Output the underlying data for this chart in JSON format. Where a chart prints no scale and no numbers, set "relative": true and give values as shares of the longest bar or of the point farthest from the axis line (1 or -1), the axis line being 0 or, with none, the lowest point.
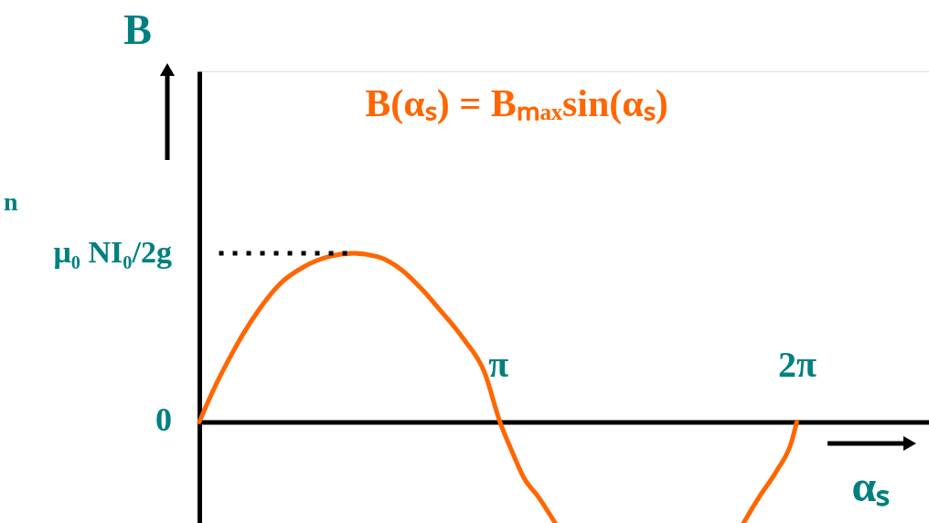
{
  "chart_data": {
    "type": "line",
    "relative": true,
    "title": "B(αₛ) = Bₘₐₓsin(αₛ)",
    "xlabel": "αₛ",
    "ylabel": "B",
    "x": [
      0,
      0.14,
      0.31,
      0.47,
      0.62,
      0.85,
      1.1,
      1.36,
      1.62,
      1.87,
      2.13,
      2.35,
      2.52,
      2.78,
      3.0,
      3.16,
      3.29,
      3.41,
      3.57,
      3.74,
      4.71,
      5.72,
      5.88,
      6.07,
      6.23,
      6.28
    ],
    "series": [
      {
        "color": "#ff6600",
        "values": [
          0,
          0.18,
          0.37,
          0.53,
          0.66,
          0.82,
          0.92,
          0.98,
          1,
          0.98,
          0.9,
          0.78,
          0.67,
          0.49,
          0.29,
          0,
          -0.18,
          -0.33,
          -0.45,
          -0.6,
          null,
          -0.6,
          -0.45,
          -0.29,
          -0.11,
          0
        ]
      }
    ],
    "xlim": [
      0,
      7.67
    ],
    "xticks": [
      {
        "value": 3.14,
        "label": "π"
      },
      {
        "value": 6.28,
        "label": "2π"
      }
    ],
    "ref_lines": [
      {
        "axis": "y",
        "value": 1,
        "color": "#000000",
        "line_style": "dotted"
      }
    ],
    "annotations": [
      "0",
      "μ₀ NI₀/2g",
      "n"
    ],
    "grid": false,
    "marker": "none",
    "line_style": "solid"
  }
}
